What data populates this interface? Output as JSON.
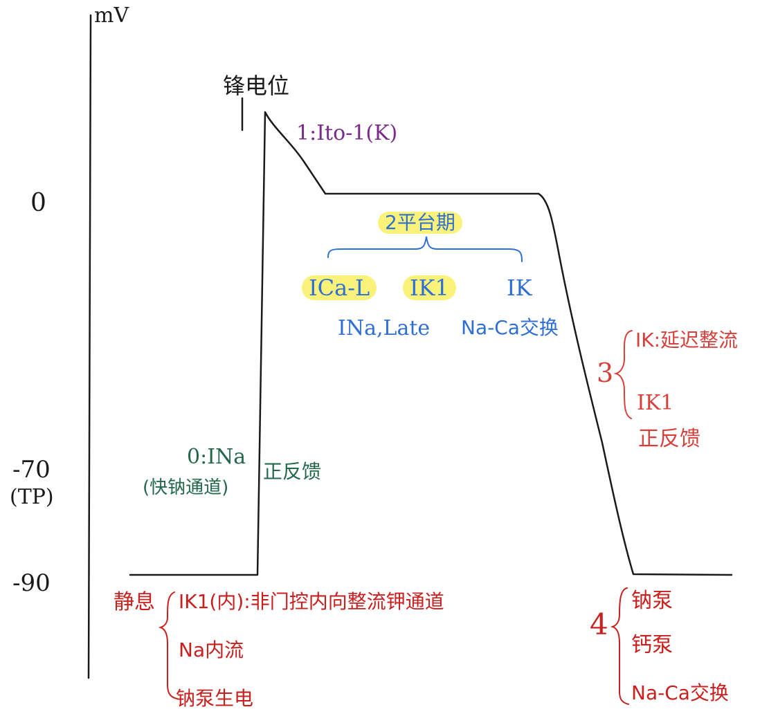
{
  "axis": {
    "y_unit": "mV",
    "tick_0": "0",
    "tick_minus70": "-70",
    "tick_tp": "(TP)",
    "tick_minus90": "-90"
  },
  "labels": {
    "spike": "锋电位",
    "phase1": "1:Ito-1(K)",
    "phase2_title": "2平台期",
    "phase2_ica": "ICa-L",
    "phase2_ik1": "IK1",
    "phase2_ik": "IK",
    "phase2_ina_late": "INa,Late",
    "phase2_naca": "Na-Ca交换",
    "phase0_line1": "0:INa",
    "phase0_line2": "(快钠通道)",
    "phase0_feedback": "正反馈",
    "phase3_num": "3",
    "phase3_ik": "IK:延迟整流",
    "phase3_ik1": "IK1",
    "phase3_feedback": "正反馈",
    "rest_title": "静息",
    "rest_line1": "IK1(内):非门控内向整流钾通道",
    "rest_line2": "Na内流",
    "rest_line3": "钠泵生电",
    "phase4_num": "4",
    "phase4_line1": "钠泵",
    "phase4_line2": "钙泵",
    "phase4_line3": "Na-Ca交换"
  },
  "colors": {
    "ink": "#1a1a1a",
    "phase1": "#7a2a8a",
    "phase2": "#2f6fd4",
    "phase0": "#23684a",
    "phase3": "#d6403a",
    "rest": "#c8201e",
    "highlight": "#fbf27a"
  }
}
